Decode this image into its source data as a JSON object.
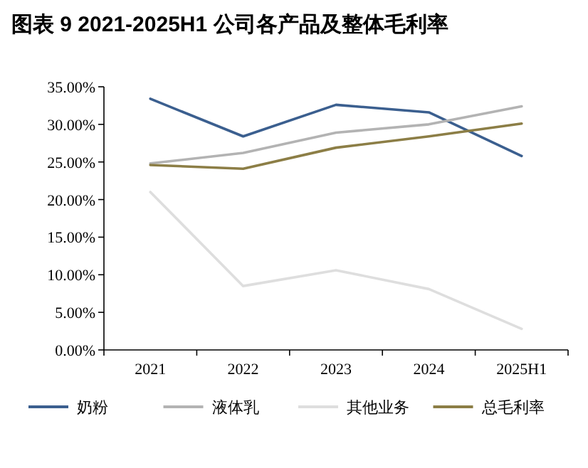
{
  "chart_data": {
    "type": "line",
    "title": "图表 9 2021-2025H1 公司各产品及整体毛利率",
    "categories": [
      "2021",
      "2022",
      "2023",
      "2024",
      "2025H1"
    ],
    "series": [
      {
        "name": "奶粉",
        "color": "#3b5f8f",
        "values": [
          33.4,
          28.4,
          32.6,
          31.6,
          25.8
        ]
      },
      {
        "name": "液体乳",
        "color": "#b3b3b3",
        "values": [
          24.8,
          26.2,
          28.9,
          30.0,
          32.4
        ]
      },
      {
        "name": "其他业务",
        "color": "#dedede",
        "values": [
          21.0,
          8.5,
          10.6,
          8.1,
          2.8
        ]
      },
      {
        "name": "总毛利率",
        "color": "#8c7e46",
        "values": [
          24.6,
          24.1,
          26.9,
          28.4,
          30.1
        ]
      }
    ],
    "ylim": [
      0,
      35
    ],
    "yticks": [
      {
        "value": 0,
        "label": "0.00%"
      },
      {
        "value": 5,
        "label": "5.00%"
      },
      {
        "value": 10,
        "label": "10.00%"
      },
      {
        "value": 15,
        "label": "15.00%"
      },
      {
        "value": 20,
        "label": "20.00%"
      },
      {
        "value": 25,
        "label": "25.00%"
      },
      {
        "value": 30,
        "label": "30.00%"
      },
      {
        "value": 35,
        "label": "35.00%"
      }
    ],
    "grid": false,
    "legend": "bottom",
    "marker": "none",
    "line_style": "solid"
  }
}
